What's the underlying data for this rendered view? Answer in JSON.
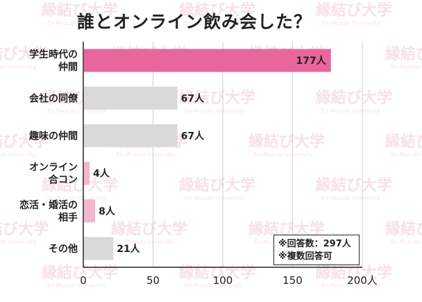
{
  "chart_data": {
    "type": "bar",
    "orientation": "horizontal",
    "title": "誰とオンライン飲み会した？",
    "categories": [
      "学生時代の\n仲間",
      "会社の同僚",
      "趣味の仲間",
      "オンライン\n合コン",
      "恋活・婚活の\n相手",
      "その他"
    ],
    "values": [
      177,
      67,
      67,
      4,
      8,
      21
    ],
    "value_labels": [
      "177人",
      "67人",
      "67人",
      "4人",
      "8人",
      "21人"
    ],
    "bar_colors": [
      "#e9669c",
      "#d9d9d9",
      "#d9d9d9",
      "#f3b6cf",
      "#f3b6cf",
      "#d9d9d9"
    ],
    "xlim": [
      0,
      200
    ],
    "x_ticks": [
      "0",
      "50",
      "100",
      "150",
      "200人"
    ],
    "x_tick_values": [
      0,
      50,
      100,
      150,
      200
    ],
    "grid": true,
    "notes": [
      "※回答数：297人",
      "※複数回答可"
    ]
  },
  "watermark": {
    "text": "縁結び大学",
    "subtext": "En-Musubi University",
    "color": "#f6e2e7"
  }
}
